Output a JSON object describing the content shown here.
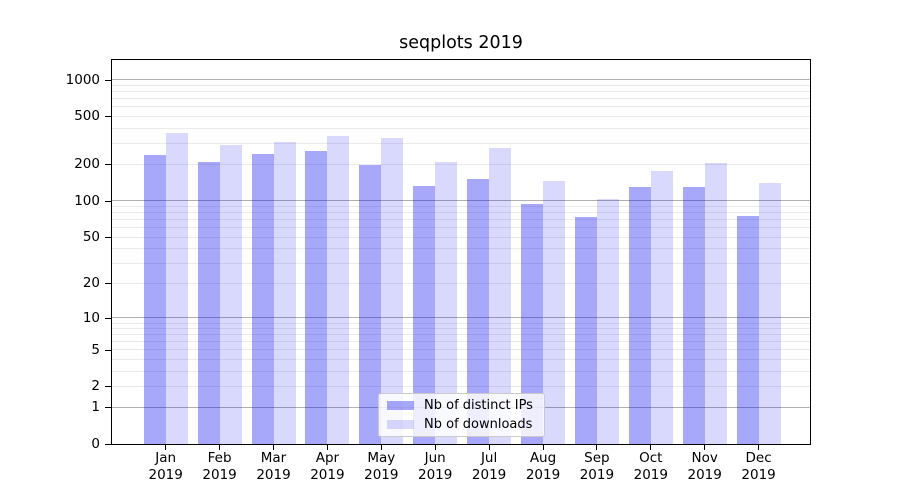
{
  "title": "seqplots 2019",
  "chart_data": {
    "type": "bar",
    "title": "seqplots 2019",
    "categories": [
      "Jan",
      "Feb",
      "Mar",
      "Apr",
      "May",
      "Jun",
      "Jul",
      "Aug",
      "Sep",
      "Oct",
      "Nov",
      "Dec"
    ],
    "category_year": "2019",
    "series": [
      {
        "name": "Nb of distinct IPs",
        "color": "rgba(0,0,240,0.34)",
        "values": [
          238,
          207,
          241,
          258,
          197,
          132,
          150,
          93,
          73,
          129,
          130,
          74
        ]
      },
      {
        "name": "Nb of downloads",
        "color": "rgba(0,0,240,0.15)",
        "values": [
          364,
          290,
          307,
          344,
          331,
          210,
          272,
          145,
          103,
          175,
          205,
          139
        ]
      }
    ],
    "xlabel": "",
    "ylabel": "",
    "y_scale": "log10(value+1)",
    "y_ticks": [
      0,
      1,
      2,
      5,
      10,
      20,
      50,
      100,
      200,
      500,
      1000
    ],
    "ylim": [
      0,
      1447
    ],
    "grid": true,
    "legend_position": "lower center",
    "colors": {
      "major_grid": "#b0b0b0",
      "minor_grid": "#ebebeb",
      "axis": "#000000",
      "background": "#ffffff"
    }
  }
}
